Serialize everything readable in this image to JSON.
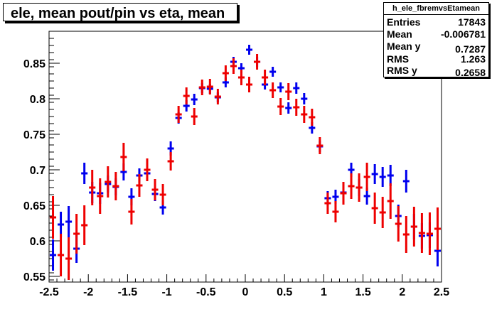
{
  "chart_data": {
    "type": "scatter",
    "title": "ele, mean pout/pin vs eta, mean",
    "xlabel": "",
    "ylabel": "",
    "xlim": [
      -2.5,
      2.5
    ],
    "ylim": [
      0.542,
      0.895
    ],
    "grid": false,
    "x_ticks": [
      "-2.5",
      "-2",
      "-1.5",
      "-1",
      "-0.5",
      "0",
      "0.5",
      "1",
      "1.5",
      "2",
      "2.5"
    ],
    "y_ticks": [
      "0.55",
      "0.6",
      "0.65",
      "0.7",
      "0.75",
      "0.8",
      "0.85"
    ],
    "stats": {
      "name": "h_ele_fbremvsEtamean",
      "rows": [
        {
          "label": "Entries",
          "value": "17843"
        },
        {
          "label": "Mean",
          "value": "-0.006781"
        },
        {
          "label": "Mean y",
          "value": "0.7287"
        },
        {
          "label": "RMS",
          "value": "1.263"
        },
        {
          "label": "RMS y",
          "value": "0.2658"
        }
      ]
    },
    "series": [
      {
        "color": "#0000ee",
        "points": [
          [
            -2.45,
            0.58,
            0.022
          ],
          [
            -2.35,
            0.623,
            0.018
          ],
          [
            -2.25,
            0.627,
            0.022
          ],
          [
            -2.15,
            0.589,
            0.02
          ],
          [
            -2.05,
            0.695,
            0.015
          ],
          [
            -1.95,
            0.668,
            0.015
          ],
          [
            -1.85,
            0.667,
            0.015
          ],
          [
            -1.75,
            0.68,
            0.012
          ],
          [
            -1.65,
            0.676,
            0.012
          ],
          [
            -1.55,
            0.697,
            0.012
          ],
          [
            -1.45,
            0.662,
            0.012
          ],
          [
            -1.35,
            0.692,
            0.01
          ],
          [
            -1.25,
            0.695,
            0.01
          ],
          [
            -1.15,
            0.666,
            0.01
          ],
          [
            -1.05,
            0.647,
            0.01
          ],
          [
            -0.95,
            0.73,
            0.01
          ],
          [
            -0.85,
            0.773,
            0.008
          ],
          [
            -0.75,
            0.79,
            0.008
          ],
          [
            -0.65,
            0.799,
            0.008
          ],
          [
            -0.55,
            0.815,
            0.007
          ],
          [
            -0.45,
            0.814,
            0.007
          ],
          [
            -0.35,
            0.802,
            0.007
          ],
          [
            -0.25,
            0.823,
            0.007
          ],
          [
            -0.15,
            0.852,
            0.007
          ],
          [
            -0.05,
            0.843,
            0.007
          ],
          [
            0.05,
            0.869,
            0.007
          ],
          [
            0.15,
            0.852,
            0.007
          ],
          [
            0.25,
            0.82,
            0.007
          ],
          [
            0.35,
            0.838,
            0.007
          ],
          [
            0.45,
            0.816,
            0.007
          ],
          [
            0.55,
            0.787,
            0.008
          ],
          [
            0.65,
            0.815,
            0.008
          ],
          [
            0.75,
            0.8,
            0.008
          ],
          [
            0.85,
            0.759,
            0.008
          ],
          [
            0.95,
            0.733,
            0.008
          ],
          [
            1.05,
            0.66,
            0.01
          ],
          [
            1.15,
            0.662,
            0.01
          ],
          [
            1.25,
            0.668,
            0.01
          ],
          [
            1.35,
            0.7,
            0.01
          ],
          [
            1.45,
            0.675,
            0.012
          ],
          [
            1.55,
            0.663,
            0.012
          ],
          [
            1.65,
            0.694,
            0.014
          ],
          [
            1.75,
            0.69,
            0.014
          ],
          [
            1.85,
            0.692,
            0.015
          ],
          [
            1.95,
            0.635,
            0.016
          ],
          [
            2.05,
            0.684,
            0.016
          ],
          [
            2.15,
            0.62,
            0.018
          ],
          [
            2.25,
            0.607,
            0.018
          ],
          [
            2.35,
            0.608,
            0.018
          ],
          [
            2.45,
            0.586,
            0.022
          ]
        ]
      },
      {
        "color": "#ee0000",
        "points": [
          [
            -2.45,
            0.633,
            0.03
          ],
          [
            -2.35,
            0.58,
            0.03
          ],
          [
            -2.25,
            0.575,
            0.03
          ],
          [
            -2.15,
            0.61,
            0.028
          ],
          [
            -2.05,
            0.622,
            0.028
          ],
          [
            -1.95,
            0.675,
            0.025
          ],
          [
            -1.85,
            0.663,
            0.025
          ],
          [
            -1.75,
            0.683,
            0.022
          ],
          [
            -1.65,
            0.677,
            0.02
          ],
          [
            -1.55,
            0.718,
            0.02
          ],
          [
            -1.45,
            0.641,
            0.018
          ],
          [
            -1.35,
            0.678,
            0.016
          ],
          [
            -1.25,
            0.7,
            0.016
          ],
          [
            -1.15,
            0.672,
            0.015
          ],
          [
            -1.05,
            0.665,
            0.015
          ],
          [
            -0.95,
            0.712,
            0.013
          ],
          [
            -0.85,
            0.778,
            0.012
          ],
          [
            -0.75,
            0.804,
            0.012
          ],
          [
            -0.65,
            0.775,
            0.012
          ],
          [
            -0.55,
            0.816,
            0.011
          ],
          [
            -0.45,
            0.817,
            0.011
          ],
          [
            -0.35,
            0.803,
            0.011
          ],
          [
            -0.25,
            0.836,
            0.011
          ],
          [
            -0.15,
            0.846,
            0.011
          ],
          [
            -0.05,
            0.83,
            0.011
          ],
          [
            0.05,
            0.82,
            0.011
          ],
          [
            0.15,
            0.852,
            0.011
          ],
          [
            0.25,
            0.83,
            0.011
          ],
          [
            0.35,
            0.812,
            0.011
          ],
          [
            0.45,
            0.789,
            0.012
          ],
          [
            0.55,
            0.81,
            0.012
          ],
          [
            0.65,
            0.788,
            0.012
          ],
          [
            0.75,
            0.778,
            0.012
          ],
          [
            0.85,
            0.774,
            0.012
          ],
          [
            0.95,
            0.734,
            0.012
          ],
          [
            1.05,
            0.653,
            0.015
          ],
          [
            1.15,
            0.641,
            0.015
          ],
          [
            1.25,
            0.667,
            0.016
          ],
          [
            1.35,
            0.677,
            0.018
          ],
          [
            1.45,
            0.675,
            0.02
          ],
          [
            1.55,
            0.69,
            0.02
          ],
          [
            1.65,
            0.646,
            0.022
          ],
          [
            1.75,
            0.64,
            0.022
          ],
          [
            1.85,
            0.656,
            0.025
          ],
          [
            1.95,
            0.624,
            0.025
          ],
          [
            2.05,
            0.609,
            0.026
          ],
          [
            2.15,
            0.62,
            0.028
          ],
          [
            2.25,
            0.611,
            0.028
          ],
          [
            2.35,
            0.61,
            0.03
          ],
          [
            2.45,
            0.617,
            0.03
          ]
        ]
      }
    ]
  }
}
